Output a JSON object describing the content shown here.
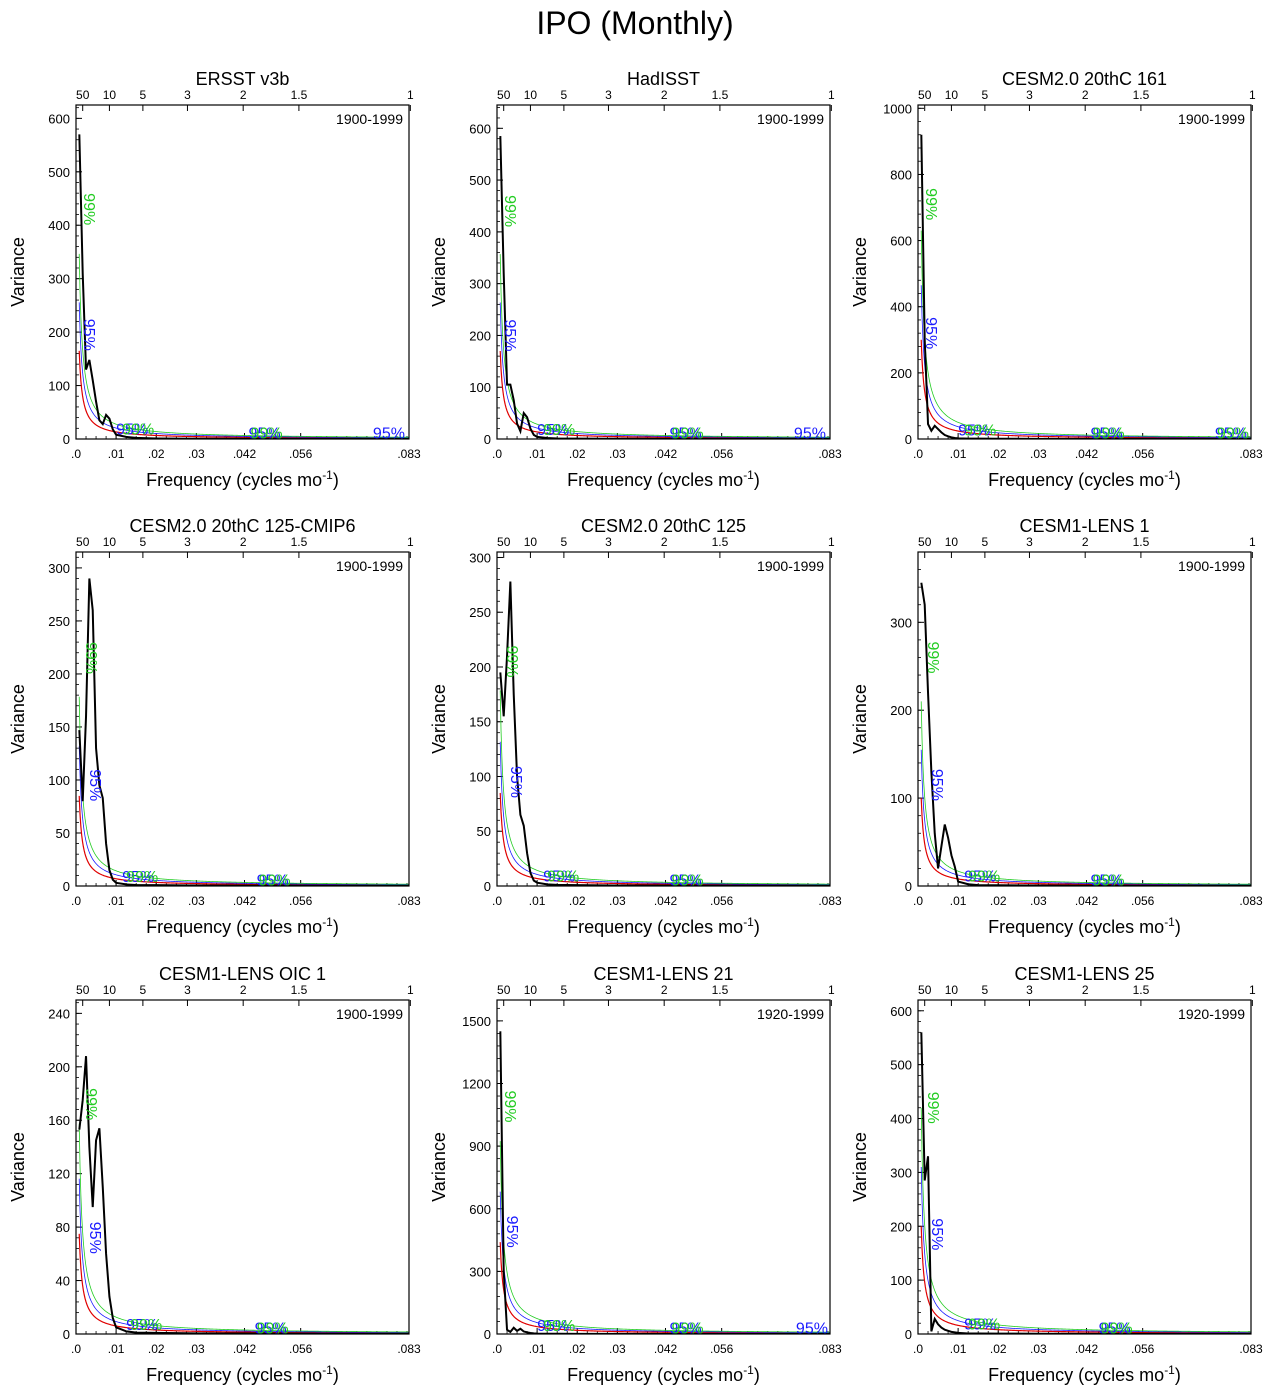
{
  "figure_title": "IPO (Monthly)",
  "colors": {
    "spectrum": "#000000",
    "red_noise": "#e00000",
    "conf95": "#1a1aff",
    "conf99": "#22cc22"
  },
  "conf_labels": {
    "c95": "95%",
    "c99": "99%"
  },
  "chart_data": [
    {
      "type": "line",
      "title": "ERSST v3b",
      "period": "1900-1999",
      "xlabel": "Frequency (cycles mo",
      "xlabel_sup": "-1",
      "xlabel_end": ")",
      "ylabel": "Variance",
      "xlim": [
        0,
        0.083
      ],
      "ylim": [
        0,
        625
      ],
      "x_ticks": [
        0,
        0.01,
        0.02,
        0.03,
        0.042,
        0.056,
        0.083
      ],
      "x_tick_labels": [
        ".0",
        ".01",
        ".02",
        ".03",
        ".042",
        ".056",
        ".083"
      ],
      "y_ticks": [
        0,
        100,
        200,
        300,
        400,
        500,
        600
      ],
      "y_tick_labels": [
        "0",
        "100",
        "200",
        "300",
        "400",
        "500",
        "600"
      ],
      "top_ticks": [
        0.00167,
        0.00833,
        0.01667,
        0.02778,
        0.04167,
        0.05556,
        0.08333
      ],
      "top_tick_labels": [
        "50",
        "10",
        "5",
        "3",
        "2",
        "1.5",
        "1"
      ],
      "red_noise_scale": 165,
      "spectrum_x": [
        0.00083,
        0.00167,
        0.0025,
        0.00333,
        0.00417,
        0.005,
        0.00583,
        0.00667,
        0.0075,
        0.00833,
        0.00917,
        0.01,
        0.0125,
        0.015,
        0.02,
        0.03,
        0.05,
        0.083
      ],
      "spectrum_y": [
        570,
        310,
        130,
        148,
        110,
        70,
        35,
        28,
        45,
        38,
        18,
        8,
        4,
        2,
        1,
        0.5,
        0.3,
        0.1
      ],
      "conf_label_positions": {
        "c95": [
          [
            0.002,
            195
          ],
          [
            0.014,
            8
          ],
          [
            0.047,
            1
          ],
          [
            0.078,
            0.5
          ]
        ],
        "c99": [
          [
            0.002,
            430
          ],
          [
            0.0155,
            8
          ],
          [
            0.0475,
            1
          ]
        ]
      }
    },
    {
      "type": "line",
      "title": "HadISST",
      "period": "1900-1999",
      "xlabel": "Frequency (cycles mo",
      "xlabel_sup": "-1",
      "xlabel_end": ")",
      "ylabel": "Variance",
      "xlim": [
        0,
        0.083
      ],
      "ylim": [
        0,
        645
      ],
      "x_ticks": [
        0,
        0.01,
        0.02,
        0.03,
        0.042,
        0.056,
        0.083
      ],
      "x_tick_labels": [
        ".0",
        ".01",
        ".02",
        ".03",
        ".042",
        ".056",
        ".083"
      ],
      "y_ticks": [
        0,
        100,
        200,
        300,
        400,
        500,
        600
      ],
      "y_tick_labels": [
        "0",
        "100",
        "200",
        "300",
        "400",
        "500",
        "600"
      ],
      "top_ticks": [
        0.00167,
        0.00833,
        0.01667,
        0.02778,
        0.04167,
        0.05556,
        0.08333
      ],
      "top_tick_labels": [
        "50",
        "10",
        "5",
        "3",
        "2",
        "1.5",
        "1"
      ],
      "red_noise_scale": 170,
      "spectrum_x": [
        0.00083,
        0.00167,
        0.0025,
        0.00333,
        0.00417,
        0.005,
        0.00583,
        0.00667,
        0.0075,
        0.00833,
        0.00917,
        0.01,
        0.0125,
        0.015,
        0.02,
        0.03,
        0.05,
        0.083
      ],
      "spectrum_y": [
        585,
        320,
        105,
        105,
        75,
        30,
        15,
        50,
        42,
        20,
        8,
        4,
        2,
        1,
        0.8,
        0.5,
        0.3,
        0.1
      ],
      "conf_label_positions": {
        "c95": [
          [
            0.002,
            200
          ],
          [
            0.014,
            8
          ],
          [
            0.047,
            1
          ],
          [
            0.078,
            0.5
          ]
        ],
        "c99": [
          [
            0.002,
            440
          ],
          [
            0.0155,
            8
          ],
          [
            0.0475,
            1
          ]
        ]
      }
    },
    {
      "type": "line",
      "title": "CESM2.0 20thC 161",
      "period": "1900-1999",
      "xlabel": "Frequency (cycles mo",
      "xlabel_sup": "-1",
      "xlabel_end": ")",
      "ylabel": "Variance",
      "xlim": [
        0,
        0.083
      ],
      "ylim": [
        0,
        1010
      ],
      "x_ticks": [
        0,
        0.01,
        0.02,
        0.03,
        0.042,
        0.056,
        0.083
      ],
      "x_tick_labels": [
        ".0",
        ".01",
        ".02",
        ".03",
        ".042",
        ".056",
        ".083"
      ],
      "y_ticks": [
        0,
        200,
        400,
        600,
        800,
        1000
      ],
      "y_tick_labels": [
        "0",
        "200",
        "400",
        "600",
        "800",
        "1000"
      ],
      "top_ticks": [
        0.00167,
        0.00833,
        0.01667,
        0.02778,
        0.04167,
        0.05556,
        0.08333
      ],
      "top_tick_labels": [
        "50",
        "10",
        "5",
        "3",
        "2",
        "1.5",
        "1"
      ],
      "red_noise_scale": 300,
      "spectrum_x": [
        0.00083,
        0.00167,
        0.0025,
        0.00333,
        0.00417,
        0.005,
        0.00583,
        0.00667,
        0.0075,
        0.00833,
        0.00917,
        0.01,
        0.0125,
        0.015,
        0.02,
        0.03,
        0.05,
        0.083
      ],
      "spectrum_y": [
        920,
        300,
        45,
        25,
        40,
        30,
        20,
        12,
        8,
        5,
        3,
        2,
        1,
        1,
        0.8,
        0.5,
        0.3,
        0.1
      ],
      "conf_label_positions": {
        "c95": [
          [
            0.002,
            320
          ],
          [
            0.014,
            10
          ],
          [
            0.047,
            2
          ],
          [
            0.078,
            1
          ]
        ],
        "c99": [
          [
            0.002,
            710
          ],
          [
            0.0155,
            10
          ],
          [
            0.0475,
            2
          ],
          [
            0.0785,
            1
          ]
        ]
      }
    },
    {
      "type": "line",
      "title": "CESM2.0 20thC 125-CMIP6",
      "period": "1900-1999",
      "xlabel": "Frequency (cycles mo",
      "xlabel_sup": "-1",
      "xlabel_end": ")",
      "ylabel": "Variance",
      "xlim": [
        0,
        0.083
      ],
      "ylim": [
        0,
        315
      ],
      "x_ticks": [
        0,
        0.01,
        0.02,
        0.03,
        0.042,
        0.056,
        0.083
      ],
      "x_tick_labels": [
        ".0",
        ".01",
        ".02",
        ".03",
        ".042",
        ".056",
        ".083"
      ],
      "y_ticks": [
        0,
        50,
        100,
        150,
        200,
        250,
        300
      ],
      "y_tick_labels": [
        "0",
        "50",
        "100",
        "150",
        "200",
        "250",
        "300"
      ],
      "top_ticks": [
        0.00167,
        0.00833,
        0.01667,
        0.02778,
        0.04167,
        0.05556,
        0.08333
      ],
      "top_tick_labels": [
        "50",
        "10",
        "5",
        "3",
        "2",
        "1.5",
        "1"
      ],
      "red_noise_scale": 85,
      "spectrum_x": [
        0.00083,
        0.00167,
        0.0025,
        0.00333,
        0.00417,
        0.005,
        0.00583,
        0.00667,
        0.0075,
        0.00833,
        0.00917,
        0.01,
        0.0125,
        0.015,
        0.02,
        0.03,
        0.05,
        0.083
      ],
      "spectrum_y": [
        147,
        80,
        160,
        290,
        260,
        130,
        95,
        83,
        40,
        15,
        6,
        3,
        1.5,
        1,
        0.8,
        0.5,
        0.3,
        0.1
      ],
      "conf_label_positions": {
        "c95": [
          [
            0.0035,
            95
          ],
          [
            0.0155,
            4
          ],
          [
            0.049,
            0.5
          ]
        ],
        "c99": [
          [
            0.0025,
            215
          ],
          [
            0.0165,
            4
          ],
          [
            0.0495,
            0.5
          ]
        ]
      }
    },
    {
      "type": "line",
      "title": "CESM2.0 20thC 125",
      "period": "1900-1999",
      "xlabel": "Frequency (cycles mo",
      "xlabel_sup": "-1",
      "xlabel_end": ")",
      "ylabel": "Variance",
      "xlim": [
        0,
        0.083
      ],
      "ylim": [
        0,
        305
      ],
      "x_ticks": [
        0,
        0.01,
        0.02,
        0.03,
        0.042,
        0.056,
        0.083
      ],
      "x_tick_labels": [
        ".0",
        ".01",
        ".02",
        ".03",
        ".042",
        ".056",
        ".083"
      ],
      "y_ticks": [
        0,
        50,
        100,
        150,
        200,
        250,
        300
      ],
      "y_tick_labels": [
        "0",
        "50",
        "100",
        "150",
        "200",
        "250",
        "300"
      ],
      "top_ticks": [
        0.00167,
        0.00833,
        0.01667,
        0.02778,
        0.04167,
        0.05556,
        0.08333
      ],
      "top_tick_labels": [
        "50",
        "10",
        "5",
        "3",
        "2",
        "1.5",
        "1"
      ],
      "red_noise_scale": 85,
      "spectrum_x": [
        0.00083,
        0.00167,
        0.0025,
        0.00333,
        0.00417,
        0.005,
        0.00583,
        0.00667,
        0.0075,
        0.00833,
        0.00917,
        0.01,
        0.0125,
        0.015,
        0.02,
        0.03,
        0.05,
        0.083
      ],
      "spectrum_y": [
        195,
        155,
        210,
        278,
        175,
        100,
        65,
        55,
        30,
        12,
        5,
        3,
        1.5,
        1,
        0.8,
        0.5,
        0.3,
        0.1
      ],
      "conf_label_positions": {
        "c95": [
          [
            0.0035,
            95
          ],
          [
            0.0155,
            4
          ],
          [
            0.047,
            0.5
          ]
        ],
        "c99": [
          [
            0.0025,
            205
          ],
          [
            0.0165,
            4
          ],
          [
            0.0475,
            0.5
          ]
        ]
      }
    },
    {
      "type": "line",
      "title": "CESM1-LENS 1",
      "period": "1900-1999",
      "xlabel": "Frequency (cycles mo",
      "xlabel_sup": "-1",
      "xlabel_end": ")",
      "ylabel": "Variance",
      "xlim": [
        0,
        0.083
      ],
      "ylim": [
        0,
        380
      ],
      "x_ticks": [
        0,
        0.01,
        0.02,
        0.03,
        0.042,
        0.056,
        0.083
      ],
      "x_tick_labels": [
        ".0",
        ".01",
        ".02",
        ".03",
        ".042",
        ".056",
        ".083"
      ],
      "y_ticks": [
        0,
        100,
        200,
        300
      ],
      "y_tick_labels": [
        "0",
        "100",
        "200",
        "300"
      ],
      "top_ticks": [
        0.00167,
        0.00833,
        0.01667,
        0.02778,
        0.04167,
        0.05556,
        0.08333
      ],
      "top_tick_labels": [
        "50",
        "10",
        "5",
        "3",
        "2",
        "1.5",
        "1"
      ],
      "red_noise_scale": 100,
      "spectrum_x": [
        0.00083,
        0.00167,
        0.0025,
        0.00333,
        0.00417,
        0.005,
        0.00583,
        0.00667,
        0.0075,
        0.00833,
        0.00917,
        0.01,
        0.0125,
        0.015,
        0.02,
        0.03,
        0.05,
        0.083
      ],
      "spectrum_y": [
        345,
        320,
        220,
        130,
        60,
        20,
        45,
        70,
        55,
        35,
        22,
        5,
        2,
        1,
        0.8,
        0.5,
        0.3,
        0.1
      ],
      "conf_label_positions": {
        "c95": [
          [
            0.0035,
            115
          ],
          [
            0.0155,
            5
          ],
          [
            0.047,
            0.5
          ]
        ],
        "c99": [
          [
            0.0025,
            260
          ],
          [
            0.0165,
            5
          ],
          [
            0.0475,
            0.5
          ]
        ]
      }
    },
    {
      "type": "line",
      "title": "CESM1-LENS OIC 1",
      "period": "1900-1999",
      "xlabel": "Frequency (cycles mo",
      "xlabel_sup": "-1",
      "xlabel_end": ")",
      "ylabel": "Variance",
      "xlim": [
        0,
        0.083
      ],
      "ylim": [
        0,
        250
      ],
      "x_ticks": [
        0,
        0.01,
        0.02,
        0.03,
        0.042,
        0.056,
        0.083
      ],
      "x_tick_labels": [
        ".0",
        ".01",
        ".02",
        ".03",
        ".042",
        ".056",
        ".083"
      ],
      "y_ticks": [
        0,
        40,
        80,
        120,
        160,
        200,
        240
      ],
      "y_tick_labels": [
        "0",
        "40",
        "80",
        "120",
        "160",
        "200",
        "240"
      ],
      "top_ticks": [
        0.00167,
        0.00833,
        0.01667,
        0.02778,
        0.04167,
        0.05556,
        0.08333
      ],
      "top_tick_labels": [
        "50",
        "10",
        "5",
        "3",
        "2",
        "1.5",
        "1"
      ],
      "red_noise_scale": 75,
      "spectrum_x": [
        0.00083,
        0.00167,
        0.0025,
        0.00333,
        0.00417,
        0.005,
        0.00583,
        0.00667,
        0.0075,
        0.00833,
        0.00917,
        0.01,
        0.0125,
        0.015,
        0.02,
        0.03,
        0.05,
        0.083
      ],
      "spectrum_y": [
        153,
        175,
        208,
        140,
        95,
        145,
        154,
        110,
        60,
        28,
        12,
        5,
        2,
        1,
        0.8,
        0.5,
        0.3,
        0.1
      ],
      "conf_label_positions": {
        "c95": [
          [
            0.0035,
            72
          ],
          [
            0.0165,
            3
          ],
          [
            0.0485,
            0.5
          ]
        ],
        "c99": [
          [
            0.0025,
            172
          ],
          [
            0.0175,
            3
          ],
          [
            0.049,
            0.5
          ]
        ]
      }
    },
    {
      "type": "line",
      "title": "CESM1-LENS 21",
      "period": "1920-1999",
      "xlabel": "Frequency (cycles mo",
      "xlabel_sup": "-1",
      "xlabel_end": ")",
      "ylabel": "Variance",
      "xlim": [
        0,
        0.083
      ],
      "ylim": [
        0,
        1600
      ],
      "x_ticks": [
        0,
        0.01,
        0.02,
        0.03,
        0.042,
        0.056,
        0.083
      ],
      "x_tick_labels": [
        ".0",
        ".01",
        ".02",
        ".03",
        ".042",
        ".056",
        ".083"
      ],
      "y_ticks": [
        0,
        300,
        600,
        900,
        1200,
        1500
      ],
      "y_tick_labels": [
        "0",
        "300",
        "600",
        "900",
        "1200",
        "1500"
      ],
      "top_ticks": [
        0.00167,
        0.00833,
        0.01667,
        0.02778,
        0.04167,
        0.05556,
        0.08333
      ],
      "top_tick_labels": [
        "50",
        "10",
        "5",
        "3",
        "2",
        "1.5",
        "1"
      ],
      "red_noise_scale": 440,
      "spectrum_x": [
        0.00083,
        0.00167,
        0.0025,
        0.00333,
        0.00417,
        0.005,
        0.00583,
        0.00667,
        0.0075,
        0.00833,
        0.00917,
        0.01,
        0.0125,
        0.015,
        0.02,
        0.03,
        0.05,
        0.083
      ],
      "spectrum_y": [
        1450,
        300,
        20,
        10,
        30,
        15,
        25,
        12,
        8,
        5,
        3,
        2,
        1,
        1,
        0.8,
        0.5,
        0.3,
        0.1
      ],
      "conf_label_positions": {
        "c95": [
          [
            0.0025,
            490
          ],
          [
            0.014,
            15
          ],
          [
            0.047,
            3
          ],
          [
            0.0785,
            2
          ]
        ],
        "c99": [
          [
            0.002,
            1090
          ],
          [
            0.0155,
            15
          ],
          [
            0.0475,
            3
          ]
        ]
      }
    },
    {
      "type": "line",
      "title": "CESM1-LENS 25",
      "period": "1920-1999",
      "xlabel": "Frequency (cycles mo",
      "xlabel_sup": "-1",
      "xlabel_end": ")",
      "ylabel": "Variance",
      "xlim": [
        0,
        0.083
      ],
      "ylim": [
        0,
        620
      ],
      "x_ticks": [
        0,
        0.01,
        0.02,
        0.03,
        0.042,
        0.056,
        0.083
      ],
      "x_tick_labels": [
        ".0",
        ".01",
        ".02",
        ".03",
        ".042",
        ".056",
        ".083"
      ],
      "y_ticks": [
        0,
        100,
        200,
        300,
        400,
        500,
        600
      ],
      "y_tick_labels": [
        "0",
        "100",
        "200",
        "300",
        "400",
        "500",
        "600"
      ],
      "top_ticks": [
        0.00167,
        0.00833,
        0.01667,
        0.02778,
        0.04167,
        0.05556,
        0.08333
      ],
      "top_tick_labels": [
        "50",
        "10",
        "5",
        "3",
        "2",
        "1.5",
        "1"
      ],
      "red_noise_scale": 200,
      "spectrum_x": [
        0.00083,
        0.00167,
        0.0025,
        0.00333,
        0.00417,
        0.005,
        0.00583,
        0.00667,
        0.0075,
        0.00833,
        0.00917,
        0.01,
        0.0125,
        0.015,
        0.02,
        0.03,
        0.05,
        0.083
      ],
      "spectrum_y": [
        560,
        285,
        330,
        5,
        28,
        18,
        12,
        8,
        6,
        4,
        3,
        2,
        1,
        1,
        0.8,
        0.5,
        0.3,
        0.1
      ],
      "conf_label_positions": {
        "c95": [
          [
            0.0035,
            185
          ],
          [
            0.0155,
            8
          ],
          [
            0.049,
            1
          ]
        ],
        "c99": [
          [
            0.0025,
            420
          ],
          [
            0.0165,
            8
          ],
          [
            0.0495,
            1
          ]
        ]
      }
    }
  ]
}
